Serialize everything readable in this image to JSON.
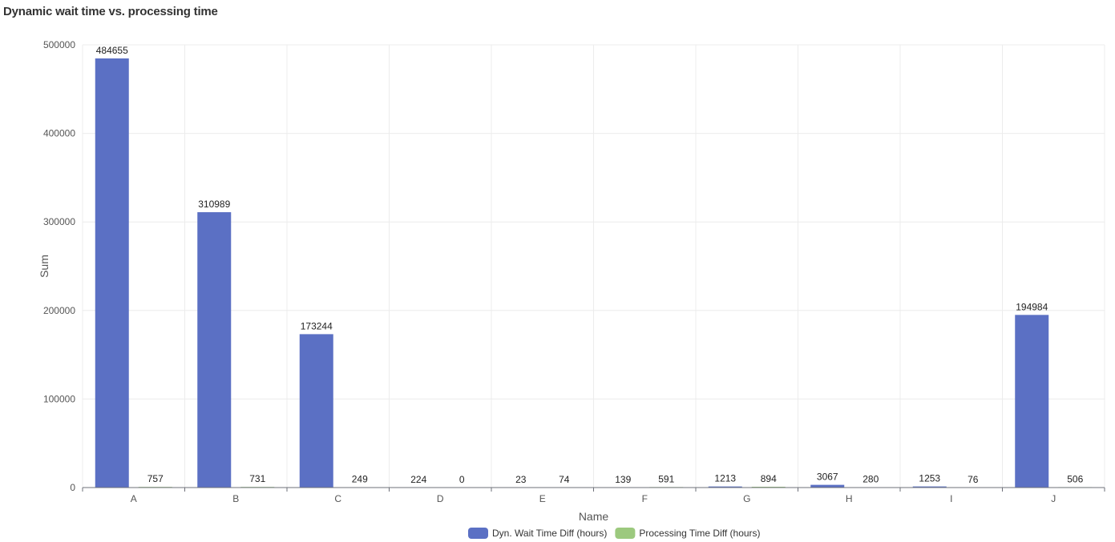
{
  "chart_data": {
    "type": "bar",
    "title": "Dynamic wait time vs. processing time",
    "xlabel": "Name",
    "ylabel": "Sum",
    "ylim": [
      0,
      500000
    ],
    "yticks": [
      "0",
      "100000",
      "200000",
      "300000",
      "400000",
      "500000"
    ],
    "grid": true,
    "legend_position": "bottom-center",
    "categories": [
      "A",
      "B",
      "C",
      "D",
      "E",
      "F",
      "G",
      "H",
      "I",
      "J"
    ],
    "series": [
      {
        "name": "Dyn. Wait Time Diff (hours)",
        "color": "#5b70c4",
        "values": [
          484655,
          310989,
          173244,
          224,
          23,
          139,
          1213,
          3067,
          1253,
          194984
        ]
      },
      {
        "name": "Processing Time Diff (hours)",
        "color": "#9cc97e",
        "values": [
          757,
          731,
          249,
          0,
          74,
          591,
          894,
          280,
          76,
          506
        ]
      }
    ]
  }
}
